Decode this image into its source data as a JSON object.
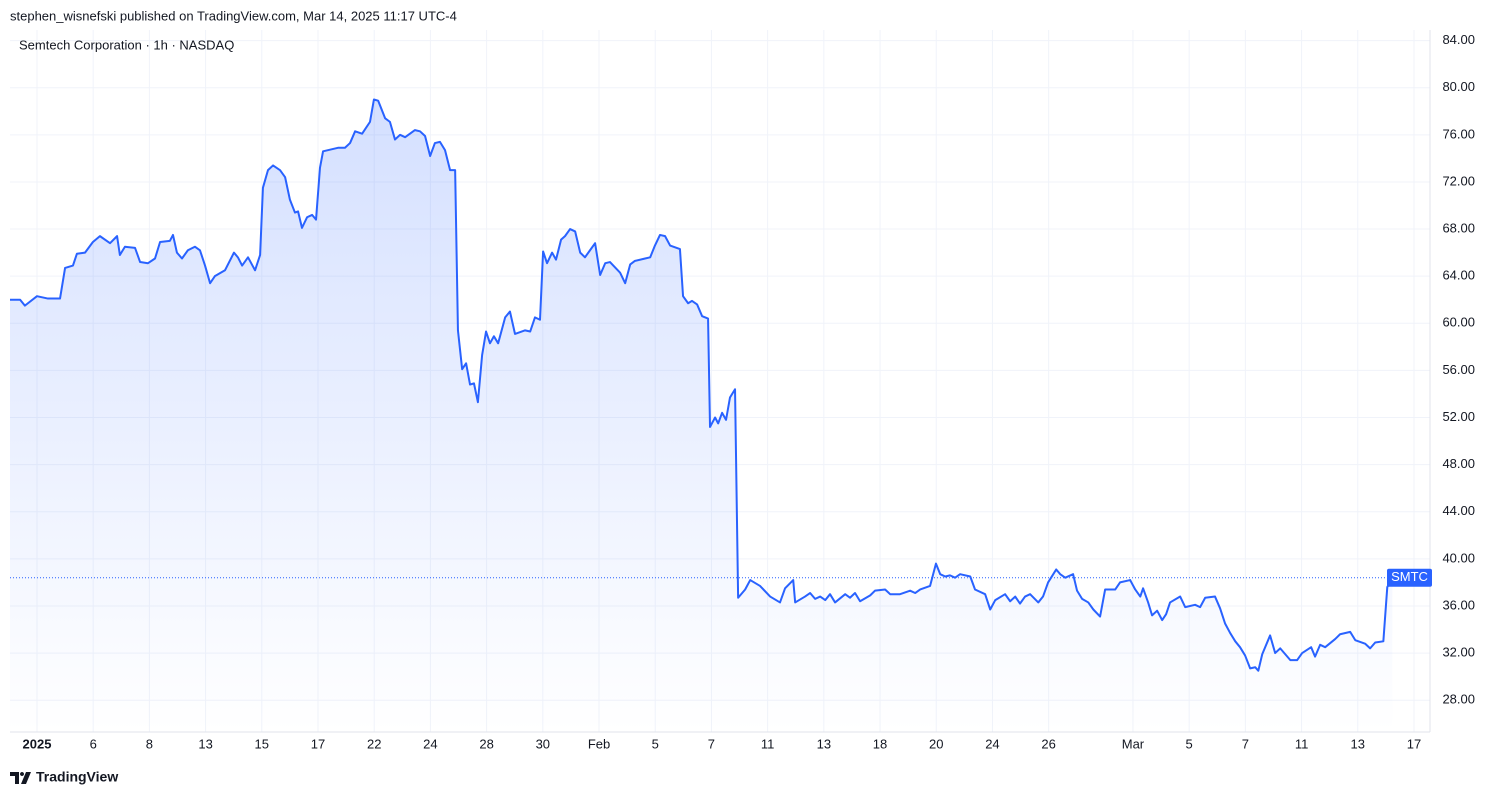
{
  "header": {
    "text": "stephen_wisnefski published on TradingView.com, Mar 14, 2025 11:17 UTC-4"
  },
  "footer": {
    "brand": "TradingView"
  },
  "chart_data": {
    "type": "area",
    "title": "Semtech Corporation · 1h · NASDAQ",
    "x": [
      -0.96,
      -0.6,
      -0.43,
      0,
      0.39,
      0.82,
      1.0,
      1.28,
      1.42,
      1.71,
      1.99,
      2.24,
      2.6,
      2.85,
      2.95,
      3.13,
      3.49,
      3.67,
      3.95,
      4.2,
      4.38,
      4.73,
      4.84,
      4.98,
      5.16,
      5.37,
      5.62,
      5.8,
      5.98,
      6.16,
      6.33,
      6.69,
      7.01,
      7.15,
      7.3,
      7.51,
      7.76,
      7.94,
      8.04,
      8.22,
      8.4,
      8.65,
      8.83,
      9.0,
      9.18,
      9.29,
      9.43,
      9.61,
      9.79,
      9.93,
      10.07,
      10.18,
      10.71,
      10.96,
      11.14,
      11.32,
      11.57,
      11.85,
      11.99,
      12.14,
      12.39,
      12.56,
      12.74,
      12.92,
      13.1,
      13.45,
      13.63,
      13.81,
      13.99,
      14.16,
      14.34,
      14.52,
      14.7,
      14.88,
      14.98,
      15.13,
      15.27,
      15.41,
      15.55,
      15.69,
      15.84,
      15.98,
      16.12,
      16.26,
      16.41,
      16.66,
      16.83,
      17.01,
      17.37,
      17.55,
      17.72,
      17.9,
      18.01,
      18.15,
      18.33,
      18.47,
      18.65,
      18.79,
      18.97,
      19.15,
      19.33,
      19.5,
      19.68,
      19.86,
      20.04,
      20.22,
      20.39,
      20.75,
      20.93,
      21.11,
      21.28,
      21.64,
      21.82,
      21.99,
      22.17,
      22.35,
      22.53,
      22.88,
      22.99,
      23.17,
      23.31,
      23.49,
      23.67,
      23.88,
      23.95,
      24.13,
      24.24,
      24.38,
      24.52,
      24.66,
      24.84,
      24.95,
      25.2,
      25.38,
      25.73,
      26.09,
      26.44,
      26.62,
      26.91,
      26.98,
      27.33,
      27.51,
      27.69,
      27.87,
      28.05,
      28.22,
      28.4,
      28.76,
      28.93,
      29.11,
      29.29,
      29.65,
      29.82,
      30.18,
      30.36,
      30.71,
      31.07,
      31.25,
      31.43,
      31.78,
      31.99,
      32.14,
      32.32,
      32.49,
      32.67,
      32.85,
      33.21,
      33.38,
      33.74,
      33.92,
      34.1,
      34.45,
      34.63,
      34.81,
      34.98,
      35.16,
      35.34,
      35.63,
      35.8,
      35.98,
      36.27,
      36.41,
      36.59,
      36.87,
      37.01,
      37.19,
      37.41,
      37.59,
      37.83,
      38.01,
      38.37,
      38.54,
      38.9,
      39.08,
      39.26,
      39.36,
      39.54,
      39.68,
      39.86,
      40.04,
      40.18,
      40.32,
      40.68,
      40.86,
      41.21,
      41.39,
      41.57,
      41.92,
      42.1,
      42.28,
      42.46,
      42.64,
      42.81,
      42.99,
      43.17,
      43.35,
      43.46,
      43.6,
      43.88,
      44.06,
      44.24,
      44.6,
      44.84,
      45.02,
      45.34,
      45.48,
      45.66,
      45.84,
      46.2,
      46.37,
      46.73,
      46.91,
      47.26,
      47.44,
      47.62,
      47.91,
      48.05,
      48.23
    ],
    "series": [
      {
        "name": "SMTC",
        "color": "#2962ff",
        "values": [
          62.0,
          62.0,
          61.5,
          62.3,
          62.1,
          62.1,
          64.7,
          64.9,
          65.9,
          66.0,
          66.9,
          67.4,
          66.8,
          67.4,
          65.8,
          66.5,
          66.4,
          65.2,
          65.1,
          65.5,
          66.9,
          67.0,
          67.5,
          66.0,
          65.5,
          66.2,
          66.5,
          66.2,
          64.9,
          63.4,
          64.0,
          64.5,
          66.0,
          65.6,
          64.9,
          65.6,
          64.5,
          65.8,
          71.5,
          73.0,
          73.4,
          73.0,
          72.4,
          70.5,
          69.4,
          69.5,
          68.1,
          69.0,
          69.2,
          68.8,
          73.2,
          74.6,
          74.9,
          74.9,
          75.3,
          76.3,
          76.1,
          77.1,
          79.0,
          78.9,
          77.4,
          77.1,
          75.6,
          76.0,
          75.8,
          76.4,
          76.3,
          75.9,
          74.2,
          75.3,
          75.4,
          74.7,
          73.0,
          73.0,
          59.4,
          56.1,
          56.6,
          54.8,
          54.9,
          53.3,
          57.3,
          59.3,
          58.3,
          58.9,
          58.3,
          60.5,
          61.0,
          59.1,
          59.4,
          59.3,
          60.5,
          60.3,
          66.1,
          65.1,
          66.0,
          65.4,
          67.1,
          67.4,
          68.0,
          67.8,
          66.0,
          65.6,
          66.2,
          66.8,
          64.1,
          65.1,
          65.2,
          64.3,
          63.4,
          65.0,
          65.3,
          65.5,
          65.6,
          66.6,
          67.5,
          67.4,
          66.6,
          66.3,
          62.3,
          61.7,
          61.9,
          61.6,
          60.6,
          60.4,
          51.2,
          52.0,
          51.5,
          52.4,
          51.8,
          53.7,
          54.4,
          36.7,
          37.4,
          38.2,
          37.7,
          36.8,
          36.3,
          37.5,
          38.2,
          36.3,
          36.8,
          37.1,
          36.6,
          36.8,
          36.5,
          37.0,
          36.3,
          37.0,
          36.7,
          37.1,
          36.4,
          36.9,
          37.3,
          37.4,
          37.0,
          37.0,
          37.3,
          37.1,
          37.4,
          37.7,
          39.6,
          38.7,
          38.5,
          38.6,
          38.4,
          38.7,
          38.5,
          37.4,
          37.0,
          35.7,
          36.5,
          37.0,
          36.4,
          36.8,
          36.2,
          36.8,
          37.0,
          36.3,
          36.8,
          38.0,
          39.1,
          38.7,
          38.4,
          38.7,
          37.3,
          36.6,
          36.3,
          35.7,
          35.1,
          37.4,
          37.4,
          38.0,
          38.2,
          37.4,
          36.8,
          37.5,
          36.3,
          35.2,
          35.6,
          34.8,
          35.3,
          36.3,
          36.8,
          35.9,
          36.1,
          35.9,
          36.7,
          36.8,
          35.8,
          34.5,
          33.7,
          33.0,
          32.5,
          31.8,
          30.7,
          30.8,
          30.5,
          31.9,
          33.5,
          32.0,
          32.4,
          31.4,
          31.4,
          32.0,
          32.5,
          31.7,
          32.7,
          32.5,
          33.2,
          33.6,
          33.8,
          33.1,
          32.8,
          32.4,
          32.9,
          33.0,
          37.6,
          38.4
        ]
      }
    ],
    "xlim": [
      -0.96,
      49.57
    ],
    "xticks": [
      {
        "value": 0,
        "label": "2025"
      },
      {
        "value": 2,
        "label": "6"
      },
      {
        "value": 4,
        "label": "8"
      },
      {
        "value": 6,
        "label": "13"
      },
      {
        "value": 8,
        "label": "15"
      },
      {
        "value": 10,
        "label": "17"
      },
      {
        "value": 12,
        "label": "22"
      },
      {
        "value": 14,
        "label": "24"
      },
      {
        "value": 16,
        "label": "28"
      },
      {
        "value": 18,
        "label": "30"
      },
      {
        "value": 20,
        "label": "Feb"
      },
      {
        "value": 22,
        "label": "5"
      },
      {
        "value": 24,
        "label": "7"
      },
      {
        "value": 26,
        "label": "11"
      },
      {
        "value": 28,
        "label": "13"
      },
      {
        "value": 30,
        "label": "18"
      },
      {
        "value": 32,
        "label": "20"
      },
      {
        "value": 34,
        "label": "24"
      },
      {
        "value": 36,
        "label": "26"
      },
      {
        "value": 39,
        "label": "Mar"
      },
      {
        "value": 41,
        "label": "5"
      },
      {
        "value": 43,
        "label": "7"
      },
      {
        "value": 45,
        "label": "11"
      },
      {
        "value": 47,
        "label": "13"
      },
      {
        "value": 49,
        "label": "17"
      }
    ],
    "ylim": [
      25.3,
      84.9
    ],
    "yticks": [
      {
        "value": 28,
        "label": "28.00"
      },
      {
        "value": 32,
        "label": "32.00"
      },
      {
        "value": 36,
        "label": "36.00"
      },
      {
        "value": 40,
        "label": "40.00"
      },
      {
        "value": 44,
        "label": "44.00"
      },
      {
        "value": 48,
        "label": "48.00"
      },
      {
        "value": 52,
        "label": "52.00"
      },
      {
        "value": 56,
        "label": "56.00"
      },
      {
        "value": 60,
        "label": "60.00"
      },
      {
        "value": 64,
        "label": "64.00"
      },
      {
        "value": 68,
        "label": "68.00"
      },
      {
        "value": 72,
        "label": "72.00"
      },
      {
        "value": 76,
        "label": "76.00"
      },
      {
        "value": 80,
        "label": "80.00"
      },
      {
        "value": 84,
        "label": "84.00"
      }
    ],
    "grid": true
  }
}
